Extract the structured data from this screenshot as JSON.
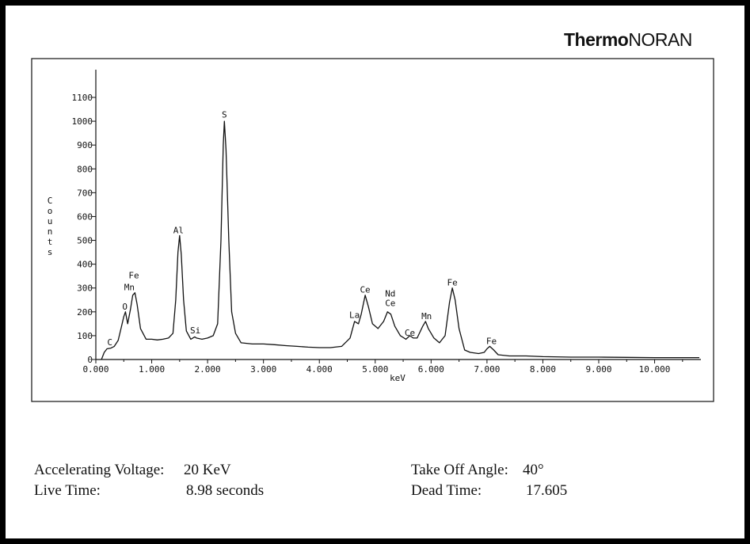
{
  "brand": {
    "name_bold": "Thermo",
    "name_regular": "NORAN"
  },
  "chart_data": {
    "type": "line",
    "title": "",
    "xlabel": "keV",
    "ylabel": "Counts",
    "xlim": [
      0,
      10.8
    ],
    "ylim": [
      0,
      1100
    ],
    "x_ticks": [
      0,
      1,
      2,
      3,
      4,
      5,
      6,
      7,
      8,
      9,
      10
    ],
    "x_tick_labels": [
      "0.000",
      "1.000",
      "2.000",
      "3.000",
      "4.000",
      "5.000",
      "6.000",
      "7.000",
      "8.000",
      "9.000",
      "10.000"
    ],
    "y_ticks": [
      0,
      100,
      200,
      300,
      400,
      500,
      600,
      700,
      800,
      900,
      1000,
      1100
    ],
    "y_tick_labels": [
      "0",
      "100",
      "200",
      "300",
      "400",
      "500",
      "600",
      "700",
      "800",
      "900",
      "1000",
      "1100"
    ],
    "grid": false,
    "series": [
      {
        "points": [
          [
            0.1,
            0
          ],
          [
            0.15,
            30
          ],
          [
            0.2,
            45
          ],
          [
            0.27,
            48
          ],
          [
            0.33,
            55
          ],
          [
            0.4,
            80
          ],
          [
            0.45,
            130
          ],
          [
            0.5,
            180
          ],
          [
            0.53,
            200
          ],
          [
            0.57,
            150
          ],
          [
            0.62,
            210
          ],
          [
            0.66,
            270
          ],
          [
            0.7,
            280
          ],
          [
            0.74,
            230
          ],
          [
            0.8,
            130
          ],
          [
            0.9,
            85
          ],
          [
            1.0,
            85
          ],
          [
            1.1,
            82
          ],
          [
            1.2,
            85
          ],
          [
            1.3,
            90
          ],
          [
            1.38,
            110
          ],
          [
            1.43,
            250
          ],
          [
            1.47,
            450
          ],
          [
            1.5,
            520
          ],
          [
            1.53,
            440
          ],
          [
            1.57,
            250
          ],
          [
            1.62,
            120
          ],
          [
            1.7,
            85
          ],
          [
            1.77,
            95
          ],
          [
            1.8,
            90
          ],
          [
            1.9,
            85
          ],
          [
            2.0,
            90
          ],
          [
            2.1,
            100
          ],
          [
            2.18,
            150
          ],
          [
            2.24,
            500
          ],
          [
            2.28,
            900
          ],
          [
            2.3,
            1000
          ],
          [
            2.33,
            880
          ],
          [
            2.38,
            500
          ],
          [
            2.43,
            200
          ],
          [
            2.5,
            110
          ],
          [
            2.6,
            70
          ],
          [
            2.8,
            65
          ],
          [
            3.0,
            65
          ],
          [
            3.2,
            62
          ],
          [
            3.4,
            58
          ],
          [
            3.6,
            55
          ],
          [
            3.8,
            52
          ],
          [
            4.0,
            50
          ],
          [
            4.2,
            50
          ],
          [
            4.4,
            55
          ],
          [
            4.55,
            90
          ],
          [
            4.63,
            160
          ],
          [
            4.7,
            150
          ],
          [
            4.75,
            190
          ],
          [
            4.82,
            270
          ],
          [
            4.88,
            220
          ],
          [
            4.95,
            150
          ],
          [
            5.05,
            130
          ],
          [
            5.15,
            160
          ],
          [
            5.22,
            200
          ],
          [
            5.28,
            190
          ],
          [
            5.35,
            140
          ],
          [
            5.45,
            100
          ],
          [
            5.55,
            85
          ],
          [
            5.62,
            100
          ],
          [
            5.68,
            90
          ],
          [
            5.75,
            90
          ],
          [
            5.85,
            140
          ],
          [
            5.9,
            160
          ],
          [
            5.95,
            130
          ],
          [
            6.05,
            90
          ],
          [
            6.15,
            70
          ],
          [
            6.25,
            100
          ],
          [
            6.33,
            240
          ],
          [
            6.38,
            300
          ],
          [
            6.43,
            250
          ],
          [
            6.5,
            130
          ],
          [
            6.6,
            40
          ],
          [
            6.7,
            30
          ],
          [
            6.85,
            25
          ],
          [
            6.95,
            30
          ],
          [
            7.0,
            45
          ],
          [
            7.05,
            55
          ],
          [
            7.12,
            40
          ],
          [
            7.2,
            20
          ],
          [
            7.4,
            15
          ],
          [
            7.7,
            15
          ],
          [
            8.0,
            12
          ],
          [
            8.5,
            10
          ],
          [
            9.0,
            10
          ],
          [
            9.5,
            9
          ],
          [
            10.0,
            8
          ],
          [
            10.5,
            8
          ],
          [
            10.8,
            8
          ]
        ]
      }
    ],
    "annotations": [
      {
        "text": "C",
        "x": 0.25,
        "y": 60
      },
      {
        "text": "O",
        "x": 0.52,
        "y": 210
      },
      {
        "text": "Mn",
        "x": 0.6,
        "y": 290
      },
      {
        "text": "Fe",
        "x": 0.68,
        "y": 340
      },
      {
        "text": "Al",
        "x": 1.48,
        "y": 530
      },
      {
        "text": "Si",
        "x": 1.78,
        "y": 110
      },
      {
        "text": "S",
        "x": 2.3,
        "y": 1015
      },
      {
        "text": "La",
        "x": 4.63,
        "y": 175
      },
      {
        "text": "Ce",
        "x": 4.82,
        "y": 280
      },
      {
        "text": "Nd",
        "x": 5.27,
        "y": 265
      },
      {
        "text": "Ce",
        "x": 5.27,
        "y": 225
      },
      {
        "text": "Ce",
        "x": 5.62,
        "y": 100
      },
      {
        "text": "Mn",
        "x": 5.92,
        "y": 170
      },
      {
        "text": "Fe",
        "x": 6.38,
        "y": 310
      },
      {
        "text": "Fe",
        "x": 7.08,
        "y": 65
      }
    ]
  },
  "info": {
    "accel_label": "Accelerating Voltage:",
    "accel_value": "20 KeV",
    "live_label": "Live Time:",
    "live_value": "8.98 seconds",
    "takeoff_label": "Take Off Angle:",
    "takeoff_value": "40°",
    "dead_label": "Dead Time:",
    "dead_value": "17.605"
  }
}
